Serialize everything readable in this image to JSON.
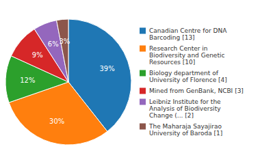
{
  "chart_data": {
    "type": "pie",
    "categories": [
      "Canadian Centre for DNA\nBarcoding [13]",
      "Research Center in\nBiodiversity and Genetic\nResources [10]",
      "Biology department of\nUniversity of Florence [4]",
      "Mined from GenBank, NCBI [3]",
      "Leibniz Institute for the\nAnalysis of Biodiversity\nChange (... [2]",
      "The Maharaja Sayajirao\nUniversity of Baroda [1]"
    ],
    "values": [
      39,
      30,
      12,
      9,
      6,
      3
    ],
    "value_labels": [
      "39%",
      "30%",
      "12%",
      "9%",
      "6%",
      "3%"
    ],
    "data_labels": true
  }
}
